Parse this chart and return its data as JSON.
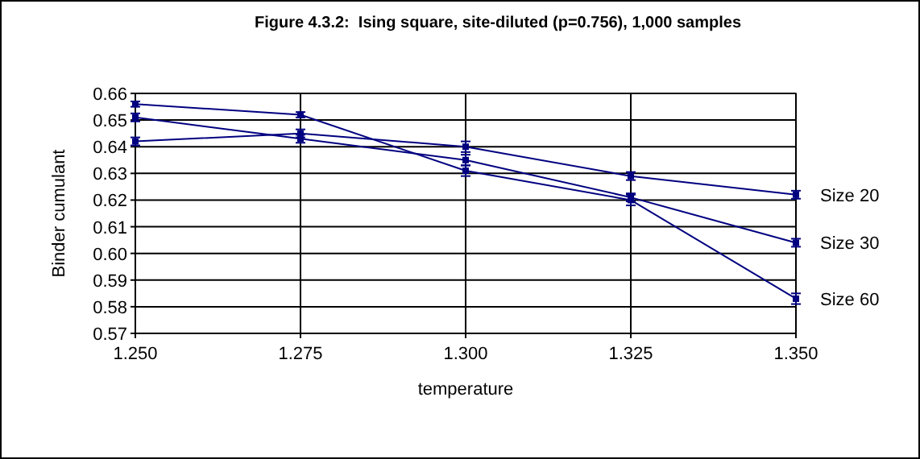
{
  "chart_data": {
    "type": "line",
    "title": "Figure 4.3.2:  Ising square, site-diluted (p=0.756), 1,000 samples",
    "xlabel": "temperature",
    "ylabel": "Binder cumulant",
    "x": [
      1.25,
      1.275,
      1.3,
      1.325,
      1.35
    ],
    "series": [
      {
        "name": "Size 20",
        "color": "#000080",
        "values": [
          0.642,
          0.645,
          0.64,
          0.629,
          0.622
        ],
        "errors": [
          0.0015,
          0.0015,
          0.002,
          0.0015,
          0.0015
        ]
      },
      {
        "name": "Size 30",
        "color": "#000080",
        "values": [
          0.651,
          0.643,
          0.635,
          0.621,
          0.604
        ],
        "errors": [
          0.0015,
          0.0015,
          0.002,
          0.0015,
          0.0015
        ]
      },
      {
        "name": "Size 60",
        "color": "#000080",
        "values": [
          0.656,
          0.652,
          0.631,
          0.62,
          0.583
        ],
        "errors": [
          0.001,
          0.001,
          0.002,
          0.002,
          0.002
        ]
      }
    ],
    "xlim": [
      1.25,
      1.35
    ],
    "xticks": [
      {
        "value": 1.25,
        "label": "1.250"
      },
      {
        "value": 1.275,
        "label": "1.275"
      },
      {
        "value": 1.3,
        "label": "1.300"
      },
      {
        "value": 1.325,
        "label": "1.325"
      },
      {
        "value": 1.35,
        "label": "1.350"
      }
    ],
    "ylim": [
      0.57,
      0.66
    ],
    "yticks": [
      {
        "value": 0.57,
        "label": "0.57"
      },
      {
        "value": 0.58,
        "label": "0.58"
      },
      {
        "value": 0.59,
        "label": "0.59"
      },
      {
        "value": 0.6,
        "label": "0.60"
      },
      {
        "value": 0.61,
        "label": "0.61"
      },
      {
        "value": 0.62,
        "label": "0.62"
      },
      {
        "value": 0.63,
        "label": "0.63"
      },
      {
        "value": 0.64,
        "label": "0.64"
      },
      {
        "value": 0.65,
        "label": "0.65"
      },
      {
        "value": 0.66,
        "label": "0.66"
      }
    ],
    "grid": true,
    "marker": "square",
    "line_style": "solid"
  }
}
